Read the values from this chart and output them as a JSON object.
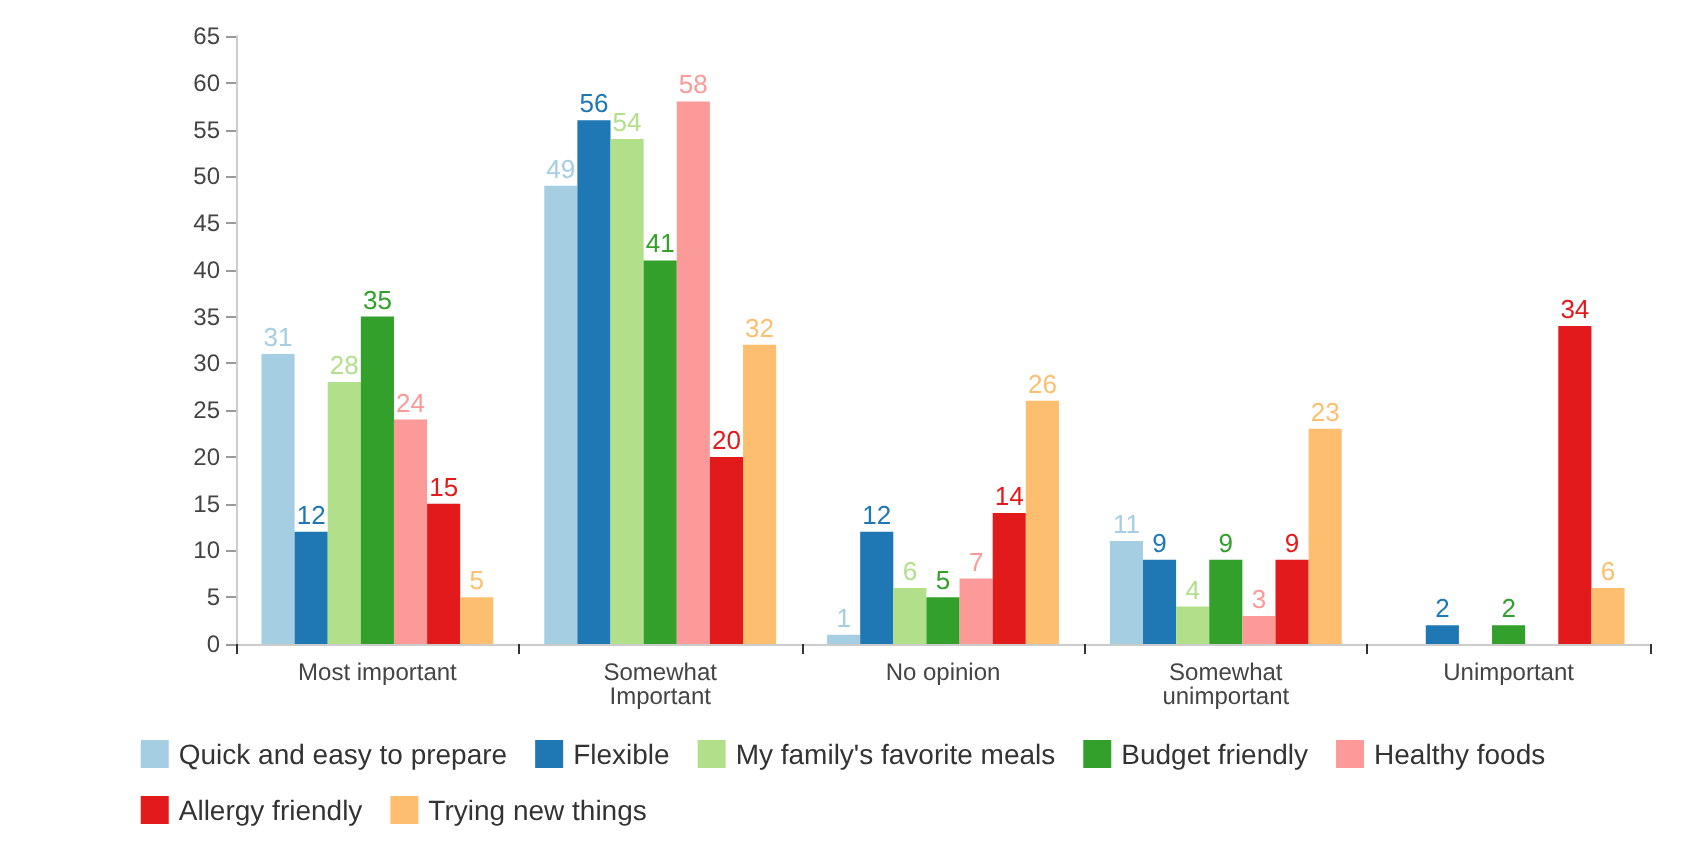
{
  "chart_data": {
    "type": "bar",
    "categories": [
      "Most important",
      "Somewhat\nImportant",
      "No opinion",
      "Somewhat\nunimportant",
      "Unimportant"
    ],
    "series": [
      {
        "name": "Quick and easy to prepare",
        "color": "#a6cee3",
        "values": [
          31,
          49,
          1,
          11,
          null
        ]
      },
      {
        "name": "Flexible",
        "color": "#1f78b4",
        "values": [
          12,
          56,
          12,
          9,
          2
        ]
      },
      {
        "name": "My family's favorite meals",
        "color": "#b2df8a",
        "values": [
          28,
          54,
          6,
          4,
          null
        ]
      },
      {
        "name": "Budget friendly",
        "color": "#33a02c",
        "values": [
          35,
          41,
          5,
          9,
          2
        ]
      },
      {
        "name": "Healthy foods",
        "color": "#fb9a99",
        "values": [
          24,
          58,
          7,
          3,
          null
        ]
      },
      {
        "name": "Allergy friendly",
        "color": "#e31a1c",
        "values": [
          15,
          20,
          14,
          9,
          34
        ]
      },
      {
        "name": "Trying new things",
        "color": "#fdbf6f",
        "values": [
          5,
          32,
          26,
          23,
          6
        ]
      }
    ],
    "ylim": [
      0,
      65
    ],
    "yticks": [
      0,
      5,
      10,
      15,
      20,
      25,
      30,
      35,
      40,
      45,
      50,
      55,
      60,
      65
    ],
    "grid": false,
    "legend": "bottom",
    "data_labels": true
  }
}
